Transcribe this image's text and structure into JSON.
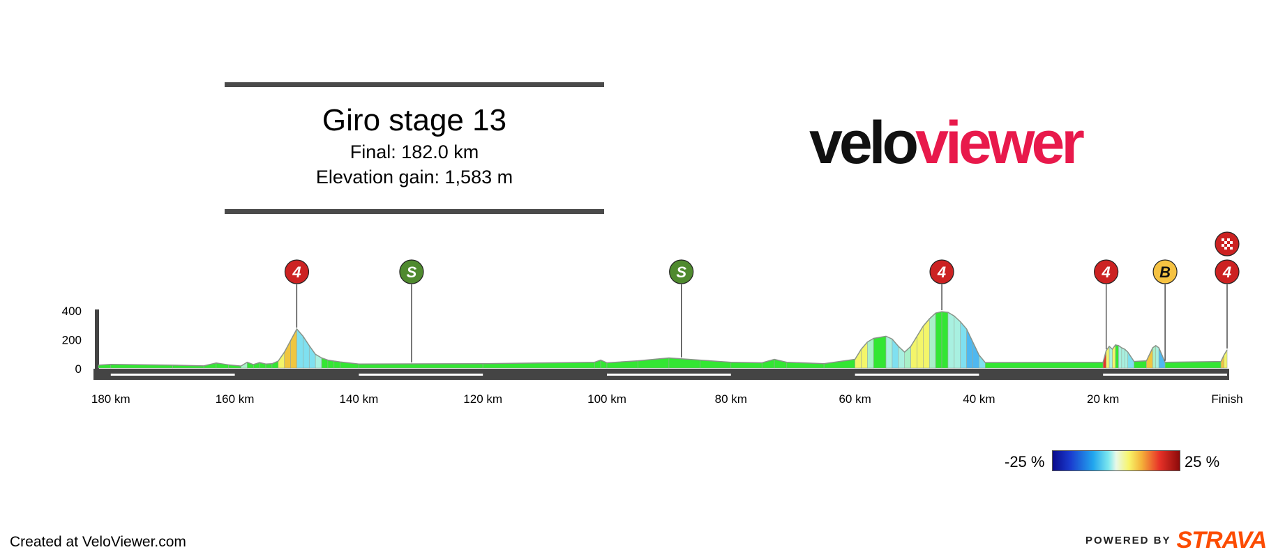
{
  "header": {
    "title": "Giro stage 13",
    "final": "Final: 182.0 km",
    "elevation_gain": "Elevation gain: 1,583 m"
  },
  "logo": {
    "part1": "velo",
    "part2": "viewer"
  },
  "footer": {
    "created": "Created at VeloViewer.com",
    "powered_by": "POWERED BY",
    "strava": "STRAVA"
  },
  "legend": {
    "min_label": "-25 %",
    "max_label": "25 %"
  },
  "colors": {
    "flat": "#33e633",
    "kom_marker": "#cc2222",
    "sprint_marker": "#4f8a2e",
    "bonus_marker": "#f5c242",
    "axis": "#444444",
    "strava": "#fc4c02",
    "logo_accent": "#e8194b"
  },
  "chart_data": {
    "type": "area",
    "title": "Giro stage 13",
    "x_unit": "km remaining",
    "y_unit": "m",
    "xlim": [
      182,
      0
    ],
    "ylim": [
      0,
      400
    ],
    "y_ticks": [
      0,
      200,
      400
    ],
    "x_ticks": [
      {
        "value": 180,
        "label": "180 km"
      },
      {
        "value": 160,
        "label": "160 km"
      },
      {
        "value": 140,
        "label": "140 km"
      },
      {
        "value": 120,
        "label": "120 km"
      },
      {
        "value": 100,
        "label": "100 km"
      },
      {
        "value": 80,
        "label": "80 km"
      },
      {
        "value": 60,
        "label": "60 km"
      },
      {
        "value": 40,
        "label": "40 km"
      },
      {
        "value": 20,
        "label": "20 km"
      },
      {
        "value": 0,
        "label": "Finish"
      }
    ],
    "elevation_profile": [
      [
        182,
        20
      ],
      [
        180,
        25
      ],
      [
        170,
        20
      ],
      [
        165,
        15
      ],
      [
        163,
        35
      ],
      [
        161,
        22
      ],
      [
        159,
        14
      ],
      [
        158,
        40
      ],
      [
        157,
        24
      ],
      [
        156,
        38
      ],
      [
        155,
        28
      ],
      [
        154,
        30
      ],
      [
        153,
        48
      ],
      [
        152,
        110
      ],
      [
        151,
        190
      ],
      [
        150,
        270
      ],
      [
        149,
        220
      ],
      [
        148,
        155
      ],
      [
        147,
        95
      ],
      [
        146,
        70
      ],
      [
        145,
        55
      ],
      [
        144,
        48
      ],
      [
        143,
        42
      ],
      [
        140,
        28
      ],
      [
        120,
        30
      ],
      [
        102,
        40
      ],
      [
        101,
        55
      ],
      [
        100,
        36
      ],
      [
        95,
        50
      ],
      [
        90,
        70
      ],
      [
        85,
        55
      ],
      [
        80,
        40
      ],
      [
        75,
        36
      ],
      [
        73,
        60
      ],
      [
        71,
        40
      ],
      [
        65,
        30
      ],
      [
        60,
        60
      ],
      [
        59,
        130
      ],
      [
        58,
        180
      ],
      [
        57,
        205
      ],
      [
        55,
        220
      ],
      [
        54,
        200
      ],
      [
        53,
        150
      ],
      [
        52,
        110
      ],
      [
        51,
        150
      ],
      [
        50,
        220
      ],
      [
        49,
        290
      ],
      [
        48,
        340
      ],
      [
        47,
        380
      ],
      [
        46,
        390
      ],
      [
        45,
        385
      ],
      [
        44,
        360
      ],
      [
        43,
        320
      ],
      [
        42,
        270
      ],
      [
        41,
        180
      ],
      [
        40,
        90
      ],
      [
        39,
        38
      ],
      [
        20,
        40
      ],
      [
        19.5,
        120
      ],
      [
        19,
        150
      ],
      [
        18.5,
        130
      ],
      [
        18,
        160
      ],
      [
        17.5,
        155
      ],
      [
        17,
        140
      ],
      [
        16.5,
        130
      ],
      [
        16,
        110
      ],
      [
        15,
        45
      ],
      [
        13,
        50
      ],
      [
        12,
        140
      ],
      [
        11.5,
        155
      ],
      [
        11,
        140
      ],
      [
        10,
        40
      ],
      [
        1,
        45
      ],
      [
        0.5,
        90
      ],
      [
        0,
        125
      ]
    ],
    "markers": [
      {
        "km": 150,
        "label": "4",
        "kind": "kom"
      },
      {
        "km": 131.5,
        "label": "S",
        "kind": "sprint"
      },
      {
        "km": 88,
        "label": "S",
        "kind": "sprint"
      },
      {
        "km": 46,
        "label": "4",
        "kind": "kom"
      },
      {
        "km": 19.5,
        "label": "4",
        "kind": "kom"
      },
      {
        "km": 10,
        "label": "B",
        "kind": "bonus"
      },
      {
        "km": 0,
        "label": "4",
        "kind": "kom"
      }
    ],
    "finish_flag_km": 0,
    "gradient_scale_percent": [
      -25,
      25
    ]
  }
}
